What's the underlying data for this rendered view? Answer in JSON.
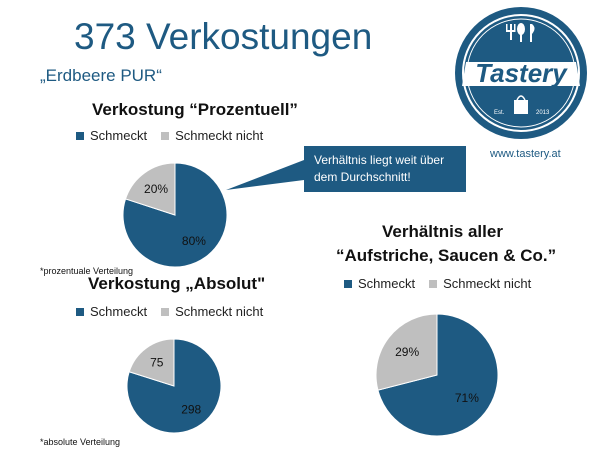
{
  "header": {
    "title": "373 Verkostungen",
    "subtitle": "„Erdbeere PUR“"
  },
  "logo": {
    "brand": "Tastery",
    "est": "Est.",
    "year": "2013"
  },
  "url": "www.tastery.at",
  "callout": {
    "line1": "Verhältnis liegt weit über",
    "line2": "dem Durchschnitt!"
  },
  "colors": {
    "primary": "#1e5a82",
    "secondary": "#bfbfbf"
  },
  "chart_data": [
    {
      "type": "pie",
      "title": "Verkostung “Prozentuell”",
      "series": [
        {
          "name": "Schmeckt",
          "value": 80,
          "label": "80%"
        },
        {
          "name": "Schmeckt nicht",
          "value": 20,
          "label": "20%"
        }
      ],
      "note": "*prozentuale Verteilung",
      "legend_position": "top"
    },
    {
      "type": "pie",
      "title": "Verkostung „Absolut\"",
      "series": [
        {
          "name": "Schmeckt",
          "value": 298,
          "label": "298"
        },
        {
          "name": "Schmeckt nicht",
          "value": 75,
          "label": "75"
        }
      ],
      "note": "*absolute Verteilung",
      "legend_position": "top"
    },
    {
      "type": "pie",
      "title_line1": "Verhältnis aller",
      "title_line2": "“Aufstriche, Saucen & Co.”",
      "series": [
        {
          "name": "Schmeckt",
          "value": 71,
          "label": "71%"
        },
        {
          "name": "Schmeckt nicht",
          "value": 29,
          "label": "29%"
        }
      ],
      "legend_position": "top"
    }
  ]
}
